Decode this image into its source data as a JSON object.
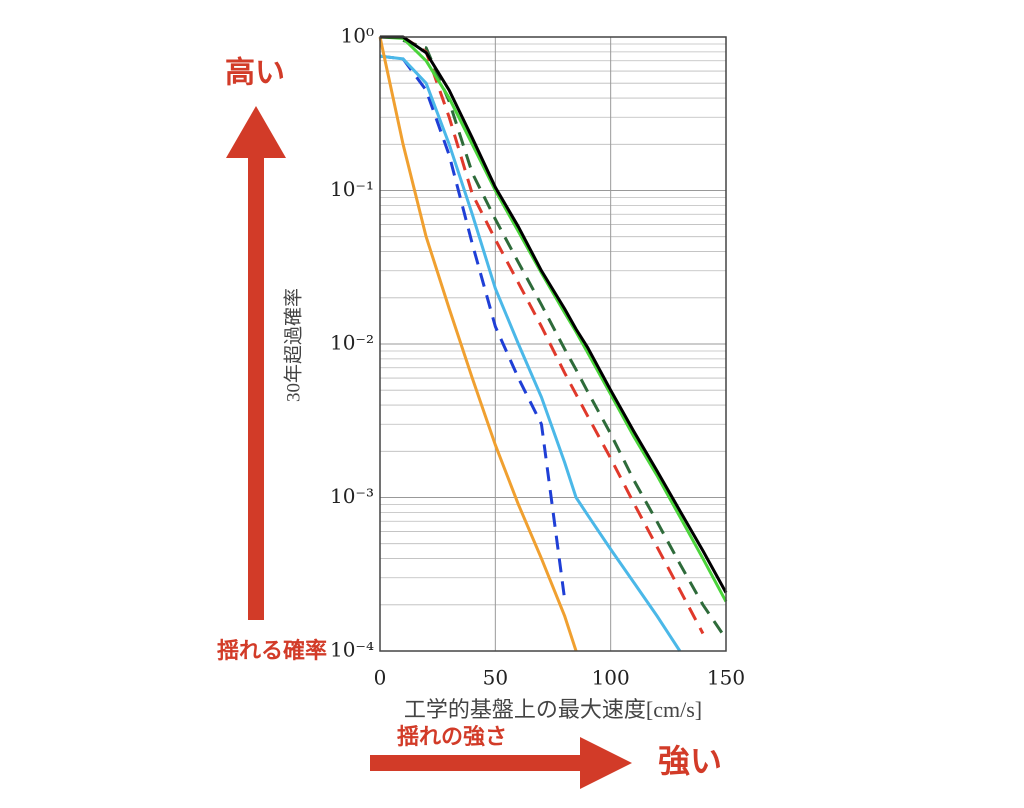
{
  "chart_data": {
    "type": "line",
    "log_y": true,
    "grid": true,
    "xlabel": "工学的基盤上の最大速度[cm/s]",
    "ylabel": "30年超過確率",
    "annotations": [
      "高い",
      "揺れる確率",
      "揺れの強さ",
      "強い"
    ],
    "x": [
      0,
      10,
      20,
      30,
      40,
      50,
      60,
      70,
      80,
      85,
      90,
      100,
      110,
      120,
      130,
      140,
      150
    ],
    "xlim": [
      0,
      150
    ],
    "xticks": [
      0,
      50,
      100,
      150
    ],
    "ylim": [
      0.0001,
      1
    ],
    "yticks": [
      {
        "value": 1,
        "label": "10⁰"
      },
      {
        "value": 0.1,
        "label": "10⁻¹"
      },
      {
        "value": 0.01,
        "label": "10⁻²"
      },
      {
        "value": 0.001,
        "label": "10⁻³"
      },
      {
        "value": 0.0001,
        "label": "10⁻⁴"
      }
    ],
    "series": [
      {
        "color": "#2e6b3a",
        "dashed": true,
        "values": [
          null,
          0.95,
          0.85,
          0.38,
          0.13,
          0.065,
          0.034,
          0.018,
          0.0093,
          0.0068,
          0.0049,
          0.0026,
          0.0013,
          0.0007,
          0.00037,
          0.0002,
          0.00012
        ]
      },
      {
        "color": "#e0392b",
        "dashed": true,
        "values": [
          null,
          1,
          0.8,
          0.3,
          0.095,
          0.048,
          0.025,
          0.013,
          0.0065,
          0.0047,
          0.0034,
          0.0018,
          0.00092,
          0.00048,
          0.00025,
          0.00013,
          null
        ]
      },
      {
        "color": "#1f3fd6",
        "dashed": true,
        "values": [
          0.75,
          0.72,
          0.45,
          0.17,
          0.045,
          0.013,
          0.006,
          0.003,
          0.00022,
          null,
          null,
          null,
          null,
          null,
          null,
          null,
          null
        ]
      },
      {
        "color": "#4bb8e8",
        "dashed": false,
        "values": [
          0.75,
          0.72,
          0.5,
          0.2,
          0.07,
          0.023,
          0.01,
          0.0045,
          0.0017,
          0.001,
          0.00077,
          0.00046,
          0.00028,
          0.00017,
          0.0001,
          null,
          null
        ]
      },
      {
        "color": "#f0a030",
        "dashed": false,
        "values": [
          1,
          0.2,
          0.05,
          0.017,
          0.006,
          0.0022,
          0.0009,
          0.0004,
          0.00017,
          0.0001,
          null,
          null,
          null,
          null,
          null,
          null,
          null
        ]
      },
      {
        "color": "#4bd43b",
        "dashed": false,
        "values": [
          1,
          0.98,
          0.7,
          0.4,
          0.2,
          0.1,
          0.054,
          0.029,
          0.016,
          0.012,
          0.0088,
          0.0047,
          0.0025,
          0.0014,
          0.00075,
          0.0004,
          0.00021
        ]
      },
      {
        "color": "#000000",
        "dashed": false,
        "values": [
          1,
          1,
          0.79,
          0.45,
          0.22,
          0.105,
          0.058,
          0.03,
          0.017,
          0.0125,
          0.0095,
          0.005,
          0.0027,
          0.0015,
          0.00082,
          0.00045,
          0.00024
        ]
      }
    ]
  }
}
